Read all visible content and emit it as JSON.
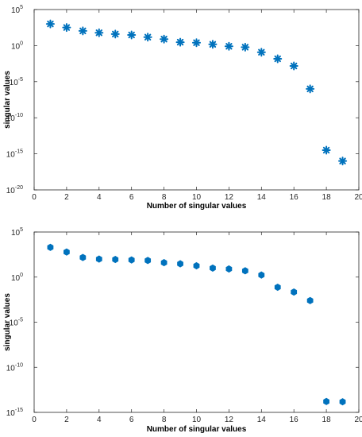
{
  "chart_data": [
    {
      "type": "scatter",
      "title": "",
      "xlabel": "Number of singular values",
      "ylabel": "singular values",
      "xlim": [
        0,
        20
      ],
      "ylim": [
        1e-20,
        100000.0
      ],
      "yscale": "log",
      "grid": false,
      "x_ticks": [
        0,
        2,
        4,
        6,
        8,
        10,
        12,
        14,
        16,
        18,
        20
      ],
      "y_ticks": [
        {
          "base": "10",
          "exp": "5",
          "value": 100000.0
        },
        {
          "base": "10",
          "exp": "0",
          "value": 1
        },
        {
          "base": "10",
          "exp": "-5",
          "value": 1e-05
        },
        {
          "base": "10",
          "exp": "-10",
          "value": 1e-10
        },
        {
          "base": "10",
          "exp": "-15",
          "value": 1e-15
        },
        {
          "base": "10",
          "exp": "-20",
          "value": 1e-20
        }
      ],
      "marker": "asterisk",
      "color": "#0072BD",
      "series": [
        {
          "x": [
            1,
            2,
            3,
            4,
            5,
            6,
            7,
            8,
            9,
            10,
            11,
            12,
            13,
            14,
            15,
            16,
            17,
            18,
            19
          ],
          "y": [
            1000,
            320,
            110,
            60,
            40,
            30,
            15,
            8,
            3,
            2.5,
            1.5,
            0.8,
            0.6,
            0.12,
            0.015,
            0.0015,
            1e-06,
            3.2e-15,
            1e-16
          ]
        }
      ]
    },
    {
      "type": "scatter",
      "title": "",
      "xlabel": "Number of singular values",
      "ylabel": "singular values",
      "xlim": [
        0,
        20
      ],
      "ylim": [
        1e-15,
        100000.0
      ],
      "yscale": "log",
      "grid": false,
      "x_ticks": [
        0,
        2,
        4,
        6,
        8,
        10,
        12,
        14,
        16,
        18,
        20
      ],
      "y_ticks": [
        {
          "base": "10",
          "exp": "5",
          "value": 100000.0
        },
        {
          "base": "10",
          "exp": "0",
          "value": 1
        },
        {
          "base": "10",
          "exp": "-5",
          "value": 1e-05
        },
        {
          "base": "10",
          "exp": "-10",
          "value": 1e-10
        },
        {
          "base": "10",
          "exp": "-15",
          "value": 1e-15
        }
      ],
      "marker": "diamond",
      "color": "#0072BD",
      "series": [
        {
          "x": [
            1,
            2,
            3,
            4,
            5,
            6,
            7,
            8,
            9,
            10,
            11,
            12,
            13,
            14,
            15,
            16,
            17,
            18,
            19
          ],
          "y": [
            2000,
            600,
            150,
            100,
            90,
            80,
            70,
            40,
            30,
            18,
            10,
            8,
            5,
            1.7,
            0.075,
            0.022,
            0.0025,
            1.6e-14,
            1.5e-14
          ]
        }
      ]
    }
  ]
}
